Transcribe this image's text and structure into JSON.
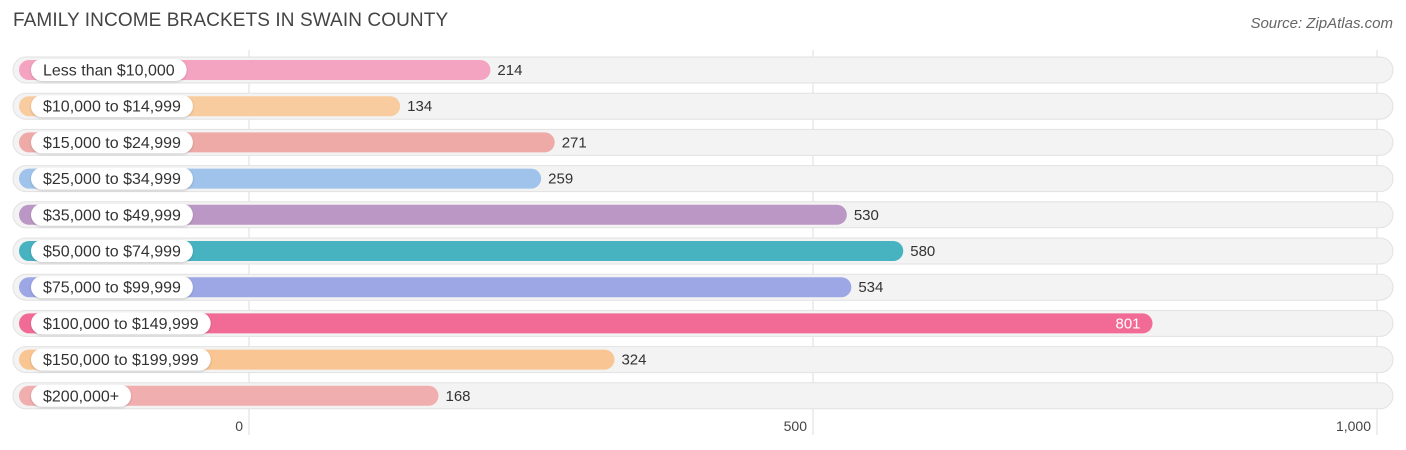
{
  "title": "FAMILY INCOME BRACKETS IN SWAIN COUNTY",
  "source": "Source: ZipAtlas.com",
  "chart_data": {
    "type": "bar",
    "orientation": "horizontal",
    "title": "FAMILY INCOME BRACKETS IN SWAIN COUNTY",
    "categories": [
      "Less than $10,000",
      "$10,000 to $14,999",
      "$15,000 to $24,999",
      "$25,000 to $34,999",
      "$35,000 to $49,999",
      "$50,000 to $74,999",
      "$75,000 to $99,999",
      "$100,000 to $149,999",
      "$150,000 to $199,999",
      "$200,000+"
    ],
    "values": [
      214,
      134,
      271,
      259,
      530,
      580,
      534,
      801,
      324,
      168
    ],
    "value_labels": [
      "214",
      "134",
      "271",
      "259",
      "530",
      "580",
      "534",
      "801",
      "324",
      "168"
    ],
    "colors": [
      "#f4a3c0",
      "#f9cc9f",
      "#eeaaa7",
      "#9fc3ea",
      "#bb97c5",
      "#47b2c0",
      "#9da7e6",
      "#f26b96",
      "#f9c592",
      "#f1aeae"
    ],
    "xlim": [
      0,
      1000
    ],
    "xticks": [
      0,
      500,
      1000
    ],
    "xtick_labels": [
      "0",
      "500",
      "1,000"
    ],
    "xlabel": "",
    "ylabel": "",
    "grid": true
  }
}
